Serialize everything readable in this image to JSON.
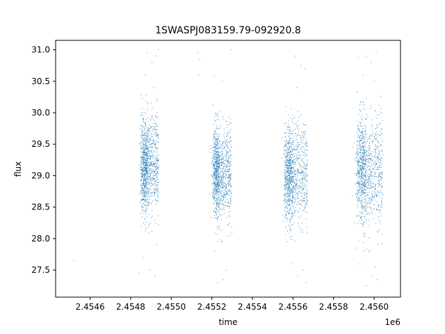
{
  "chart_data": {
    "type": "scatter",
    "title": "1SWASPJ083159.79-092920.8",
    "xlabel": "time",
    "ylabel": "flux",
    "x_offset_label": "1e6",
    "x_unit_scale": 1000000,
    "xlim": [
      2454430,
      2456130
    ],
    "ylim": [
      27.07,
      31.15
    ],
    "x_ticks": [
      2454600,
      2454800,
      2455000,
      2455200,
      2455400,
      2455600,
      2455800,
      2456000
    ],
    "x_tick_labels": [
      "2.4546",
      "2.4548",
      "2.4550",
      "2.4552",
      "2.4554",
      "2.4556",
      "2.4558",
      "2.4560"
    ],
    "y_ticks": [
      27.5,
      28.0,
      28.5,
      29.0,
      29.5,
      30.0,
      30.5,
      31.0
    ],
    "y_tick_labels": [
      "27.5",
      "28.0",
      "28.5",
      "29.0",
      "29.5",
      "30.0",
      "30.5",
      "31.0"
    ],
    "grid": false,
    "marker_color": "#1f77b4",
    "series": [
      {
        "name": "",
        "clusters": [
          {
            "x_range": [
              2454848,
              2454938
            ],
            "y_center": 29.15,
            "y_spread": 0.38,
            "x_peak": 2454870
          },
          {
            "x_range": [
              2455208,
              2455296
            ],
            "y_center": 29.05,
            "y_spread": 0.36,
            "x_peak": 2455222
          },
          {
            "x_range": [
              2455558,
              2455672
            ],
            "y_center": 29.02,
            "y_spread": 0.38,
            "x_peak": 2455580
          },
          {
            "x_range": [
              2455915,
              2456042
            ],
            "y_center": 29.08,
            "y_spread": 0.42,
            "x_peak": 2455940
          }
        ],
        "points": [
          [
            2454520,
            27.65
          ],
          [
            2454880,
            30.95
          ],
          [
            2454905,
            30.8
          ],
          [
            2454925,
            30.9
          ],
          [
            2454935,
            31.0
          ],
          [
            2454870,
            30.6
          ],
          [
            2454915,
            30.4
          ],
          [
            2454895,
            27.5
          ],
          [
            2454920,
            27.4
          ],
          [
            2454930,
            27.9
          ],
          [
            2454860,
            27.7
          ],
          [
            2454842,
            27.45
          ],
          [
            2455130,
            30.95
          ],
          [
            2455140,
            30.85
          ],
          [
            2455135,
            30.6
          ],
          [
            2455295,
            31.0
          ],
          [
            2455250,
            30.5
          ],
          [
            2455230,
            27.3
          ],
          [
            2455255,
            27.35
          ],
          [
            2455270,
            27.5
          ],
          [
            2455215,
            27.8
          ],
          [
            2455300,
            28.1
          ],
          [
            2455610,
            30.9
          ],
          [
            2455640,
            30.75
          ],
          [
            2455660,
            30.7
          ],
          [
            2455620,
            30.4
          ],
          [
            2455600,
            27.6
          ],
          [
            2455625,
            27.4
          ],
          [
            2455650,
            27.5
          ],
          [
            2455665,
            27.3
          ],
          [
            2455570,
            27.95
          ],
          [
            2455960,
            30.9
          ],
          [
            2455985,
            30.8
          ],
          [
            2456010,
            30.95
          ],
          [
            2456000,
            30.5
          ],
          [
            2455945,
            30.6
          ],
          [
            2455930,
            27.6
          ],
          [
            2455960,
            27.25
          ],
          [
            2455990,
            27.4
          ],
          [
            2456015,
            27.35
          ],
          [
            2456005,
            27.55
          ],
          [
            2455915,
            27.85
          ]
        ]
      }
    ]
  }
}
